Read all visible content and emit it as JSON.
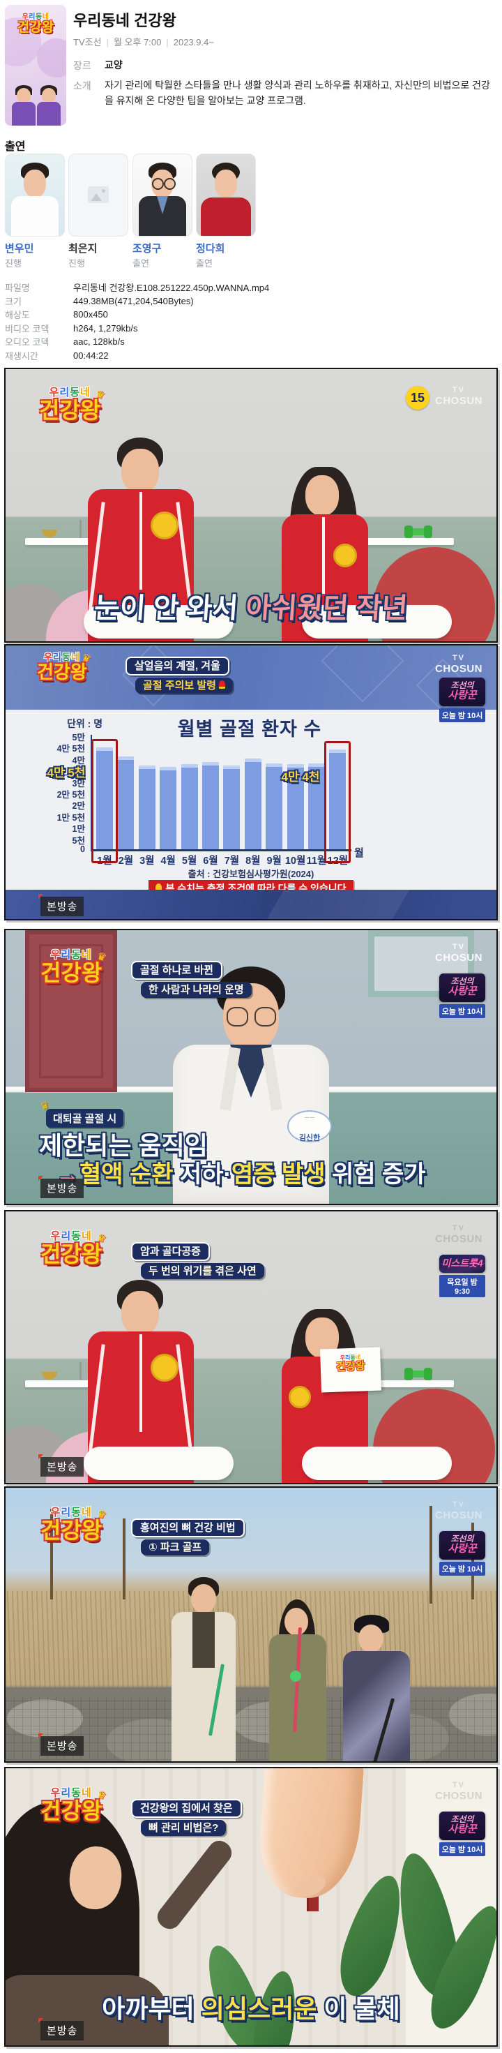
{
  "program": {
    "title": "우리동네 건강왕",
    "channel": "TV조선",
    "separator": "|",
    "air_day_time": "월 오후 7:00",
    "air_start": "2023.9.4~",
    "genre_label": "장르",
    "genre": "교양",
    "intro_label": "소개",
    "intro": "자기 관리에 탁월한 스타들을 만나 생활 양식과 관리 노하우를 취재하고, 자신만의 비법으로 건강을 유지해 온 다양한 팁을 알아보는 교양 프로그램."
  },
  "cast": {
    "heading": "출연",
    "members": [
      {
        "name": "변우민",
        "role": "진행"
      },
      {
        "name": "최은지",
        "role": "진행"
      },
      {
        "name": "조영구",
        "role": "출연"
      },
      {
        "name": "정다희",
        "role": "출연"
      }
    ]
  },
  "file_info": {
    "rows": [
      {
        "label": "파일명",
        "value": "우리동네 건강왕.E108.251222.450p.WANNA.mp4"
      },
      {
        "label": "크기",
        "value": "449.38MB(471,204,540Bytes)"
      },
      {
        "label": "해상도",
        "value": "800x450"
      },
      {
        "label": "비디오 코덱",
        "value": "h264, 1,279kb/s"
      },
      {
        "label": "오디오 코덱",
        "value": "aac, 128kb/s"
      },
      {
        "label": "재생시간",
        "value": "00:44:22"
      }
    ]
  },
  "branding": {
    "logo_line1": "우리동네",
    "logo_line2": "건강왕",
    "crown": "♛",
    "channel_line1": "TV",
    "channel_line2": "CHOSUN",
    "rating": "15",
    "live_badge": "본방송",
    "promo_love_line1": "조선의",
    "promo_love_line2": "사랑꾼",
    "promo_love_time": "오늘 밤 10시",
    "promo_trot_title": "미스트롯4",
    "promo_trot_time": "목요일 밤 9:30",
    "colors": {
      "logo_yellow": "#ffd21c",
      "logo_red_outline": "#d5372b",
      "bar_blue": "#7d9ce2",
      "highlight_red": "#a51414",
      "caption_yellow": "#ffe14d",
      "caption_pink": "#f4959c",
      "link_blue": "#3a6bc7"
    }
  },
  "shots": {
    "s1": {
      "caption_part1": "눈이 안 와서 ",
      "caption_part2": "아쉬웠던 작년"
    },
    "s2": {
      "badge_line1": "살얼음의 계절, 겨울",
      "badge_line2": "골절 주의보 발령"
    },
    "s3": {
      "badge_line1": "골절 하나로 바뀐",
      "badge_line2": "한 사람과 나라의 운명",
      "tag": "대퇴골 골절 시",
      "caption_line1": "제한되는 움직임",
      "arrow": "→",
      "seg1": "혈액 순환",
      "seg2": " 저하·",
      "seg3": "염증 발생",
      "seg4": " 위험 증가",
      "doctor_name": "김신한"
    },
    "s4": {
      "badge_line1": "암과 골다공증",
      "badge_line2": "두 번의 위기를 겪은 사연"
    },
    "s5": {
      "badge_line1": "홍여진의 뼈 건강 비법",
      "badge_line2": "① 파크 골프"
    },
    "s6": {
      "badge_line1": "건강왕의 집에서 찾은",
      "badge_line2": "뼈 관리 비법은?",
      "seg1": "아까부터 ",
      "seg2": "의심스러운",
      "seg3": " 이 물체"
    }
  },
  "chart_data": {
    "type": "bar",
    "title": "월별 골절 환자 수",
    "unit_label": "단위 : 명",
    "categories": [
      "1월",
      "2월",
      "3월",
      "4월",
      "5월",
      "6월",
      "7월",
      "8월",
      "9월",
      "10월",
      "11월",
      "12월"
    ],
    "values": [
      45000,
      41000,
      37000,
      36500,
      37500,
      38500,
      37000,
      40000,
      38000,
      37500,
      38000,
      44000
    ],
    "y_ticks": [
      "5만",
      "4만 5천",
      "4만",
      "3만 5천",
      "3만",
      "2만 5천",
      "2만",
      "1만 5천",
      "1만",
      "5천",
      "0"
    ],
    "x_axis_unit": "월",
    "ylim": [
      0,
      50000
    ],
    "grid": false,
    "legend": false,
    "highlights": [
      {
        "index": 0,
        "label": "4만 5천"
      },
      {
        "index": 11,
        "label": "4만 4천"
      }
    ],
    "source": "출처 : 건강보험심사평가원(2024)",
    "disclaimer": "본 수치는 측정 조건에 따라 다를 수 있습니다"
  }
}
